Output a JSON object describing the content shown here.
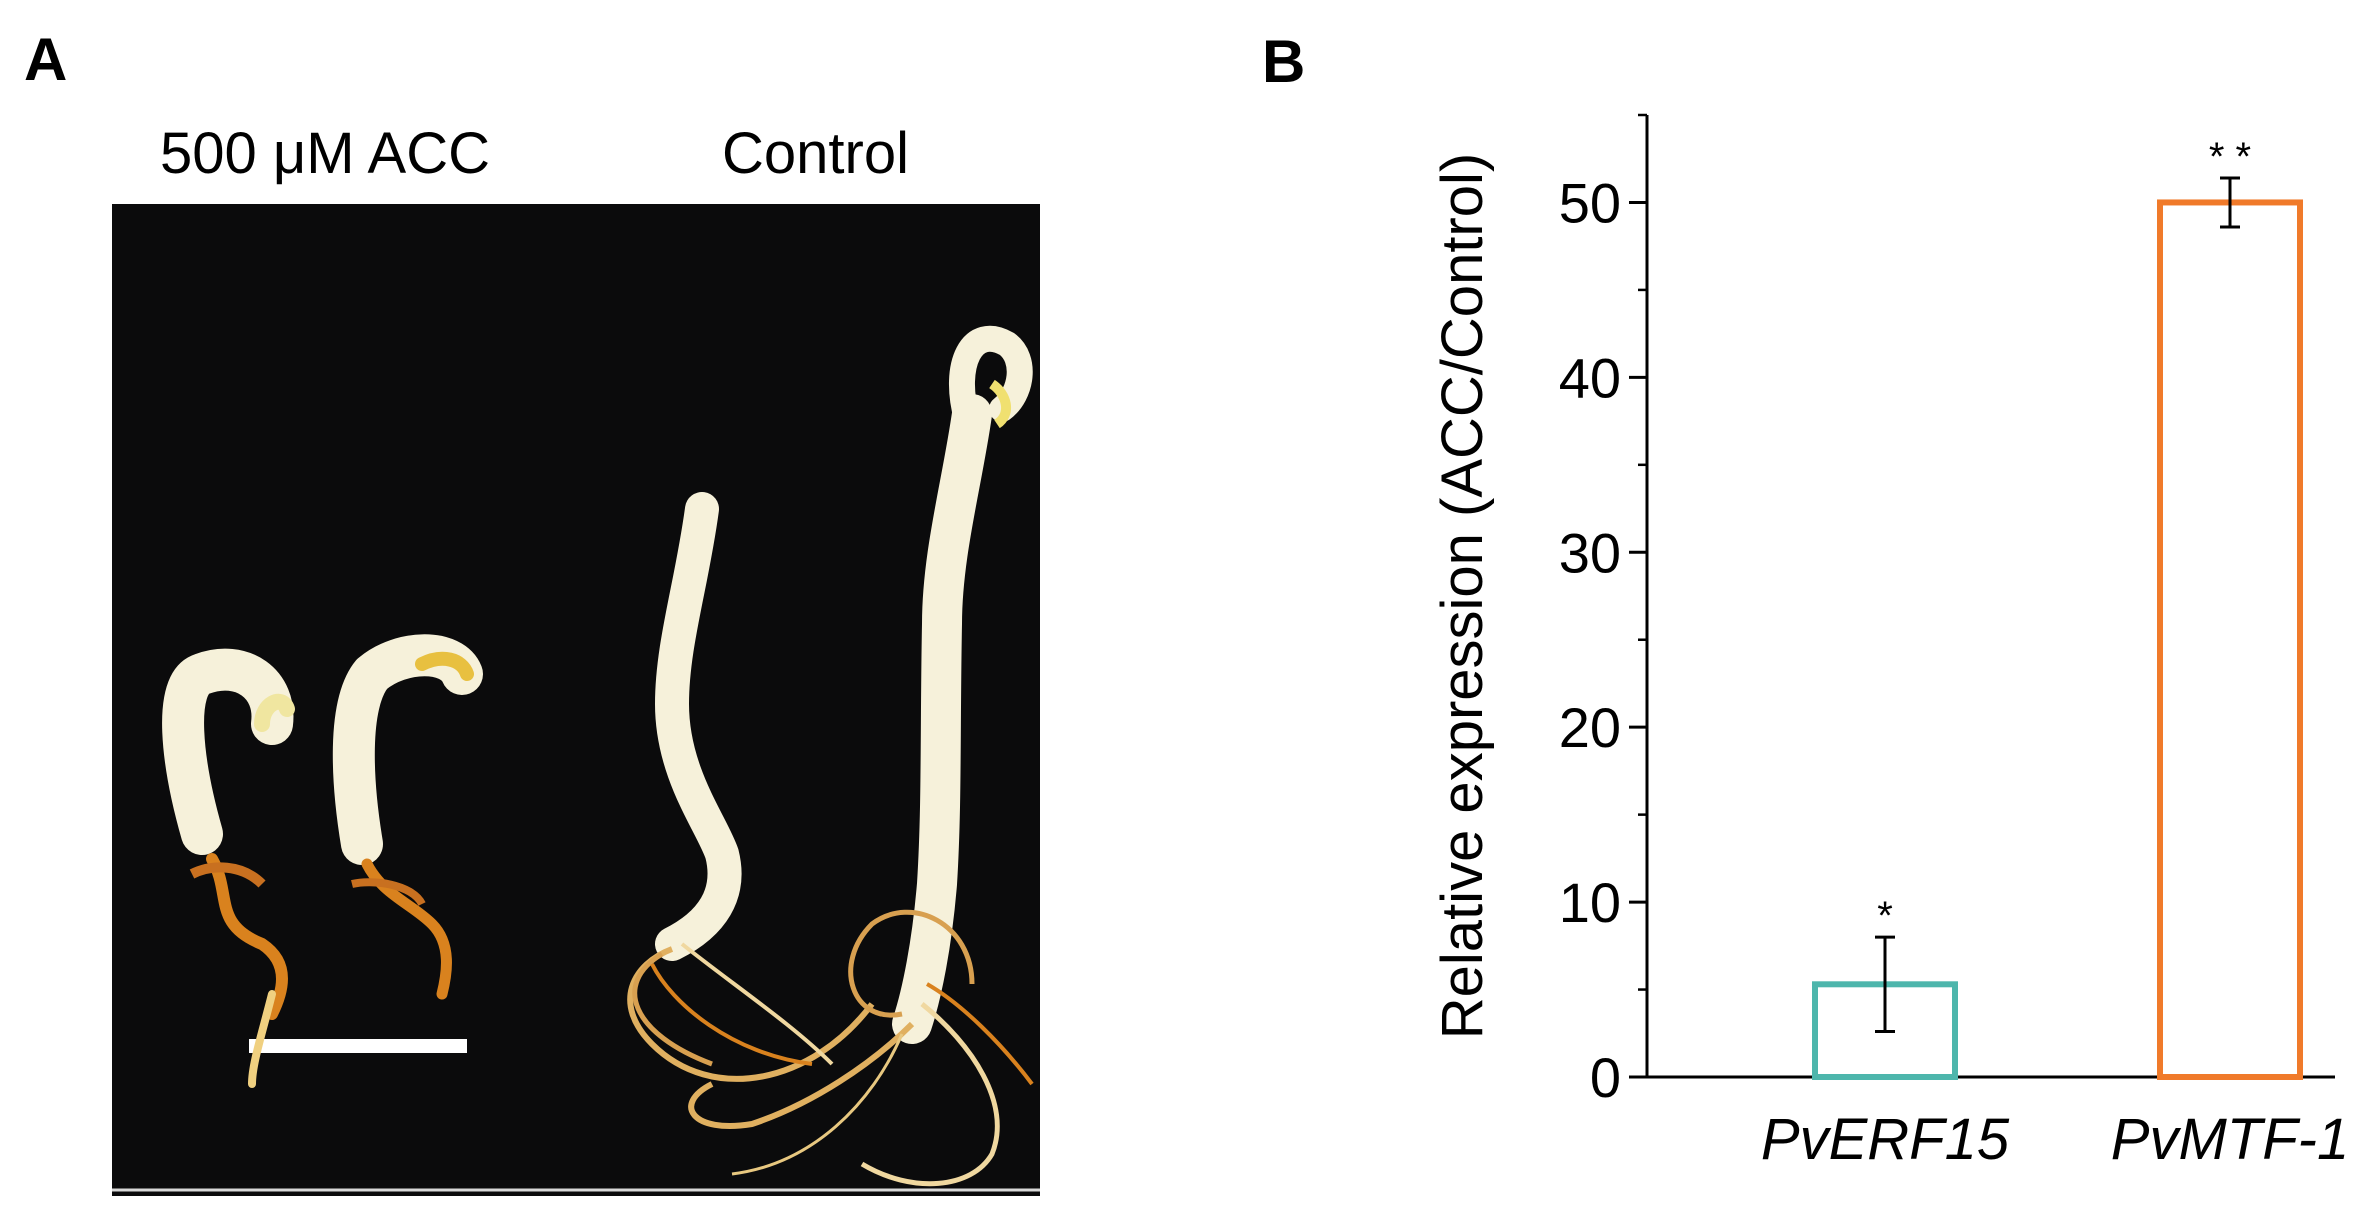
{
  "panel_a": {
    "label": "A",
    "conditions": [
      "500 μM ACC",
      "Control"
    ],
    "image_description_icon": "seedling-photo"
  },
  "panel_b": {
    "label": "B"
  },
  "colors": {
    "photo_background": "#0b0b0c",
    "seedling": "#f6f1da",
    "root_orange": "#d9821e",
    "bar_PvERF15": "#4db6ac",
    "bar_PvMTF-1": "#f07a2a"
  },
  "chart_data": {
    "type": "bar",
    "categories": [
      "PvERF15",
      "PvMTF-1"
    ],
    "values": [
      5.3,
      50.0
    ],
    "error": [
      2.7,
      1.4
    ],
    "significance": [
      "*",
      "* *"
    ],
    "bar_colors": [
      "#4db6ac",
      "#f07a2a"
    ],
    "bar_fill": "none",
    "ylabel": "Relative expression (ACC/Control)",
    "xlabel": "",
    "ylim": [
      0,
      55
    ],
    "yticks": [
      0,
      10,
      20,
      30,
      40,
      50
    ],
    "minor_ticks": [
      5,
      15,
      25,
      35,
      45,
      55
    ],
    "grid": false,
    "category_style": "italic"
  }
}
